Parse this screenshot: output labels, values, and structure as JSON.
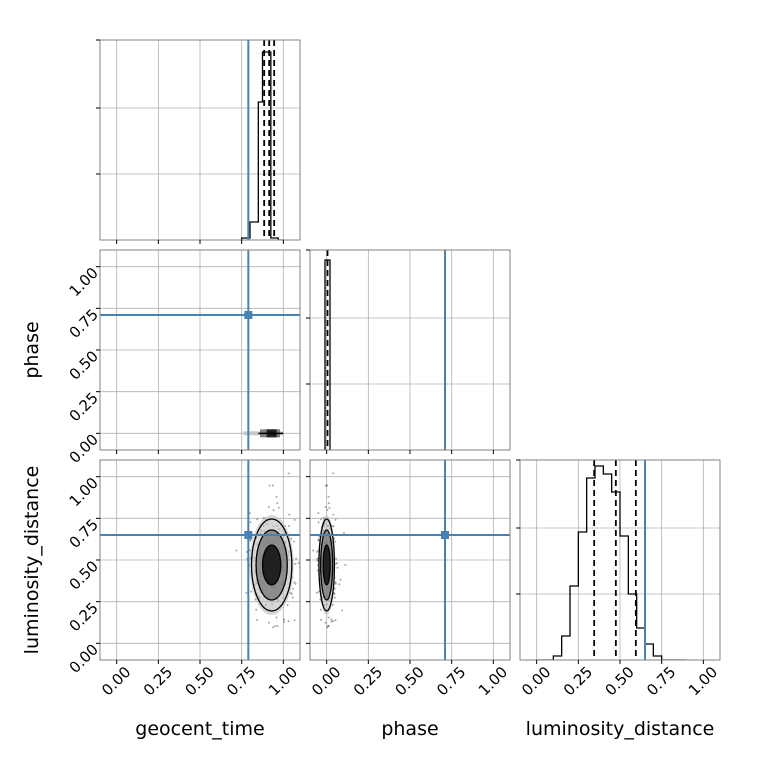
{
  "chart_data": {
    "type": "corner",
    "parameters": [
      "geocent_time",
      "phase",
      "luminosity_distance"
    ],
    "axis_range": [
      -0.1,
      1.1
    ],
    "tick_labels": [
      "0.00",
      "0.25",
      "0.50",
      "0.75",
      "1.00"
    ],
    "tick_values": [
      0,
      0.25,
      0.5,
      0.75,
      1.0
    ],
    "grid": true,
    "truths": {
      "geocent_time": 0.79,
      "phase": 0.71,
      "luminosity_distance": 0.65
    },
    "truth_color": "#4682b4",
    "line_color": "#000000",
    "quantiles": {
      "geocent_time": [
        0.885,
        0.915,
        0.945
      ],
      "phase": [
        0.005
      ],
      "luminosity_distance": [
        0.345,
        0.475,
        0.595
      ]
    },
    "histograms": {
      "geocent_time": {
        "edges": [
          0.75,
          0.8,
          0.85,
          0.875,
          0.905,
          0.925,
          0.97,
          1.0
        ],
        "heights": [
          0.01,
          0.09,
          0.69,
          0.94,
          0.94,
          0.01,
          0.0
        ]
      },
      "phase": {
        "edges": [
          -0.01,
          0.0,
          0.02
        ],
        "heights": [
          0.95,
          0.95
        ]
      },
      "luminosity_distance": {
        "edges": [
          0.0,
          0.05,
          0.1,
          0.15,
          0.2,
          0.25,
          0.3,
          0.35,
          0.4,
          0.45,
          0.5,
          0.55,
          0.6,
          0.65,
          0.7,
          0.75,
          0.8,
          0.85,
          0.9
        ],
        "heights": [
          0.0,
          0.0,
          0.02,
          0.12,
          0.37,
          0.64,
          0.91,
          0.97,
          0.93,
          0.84,
          0.62,
          0.33,
          0.16,
          0.08,
          0.02,
          0.0,
          0.0,
          0.0
        ]
      }
    }
  }
}
